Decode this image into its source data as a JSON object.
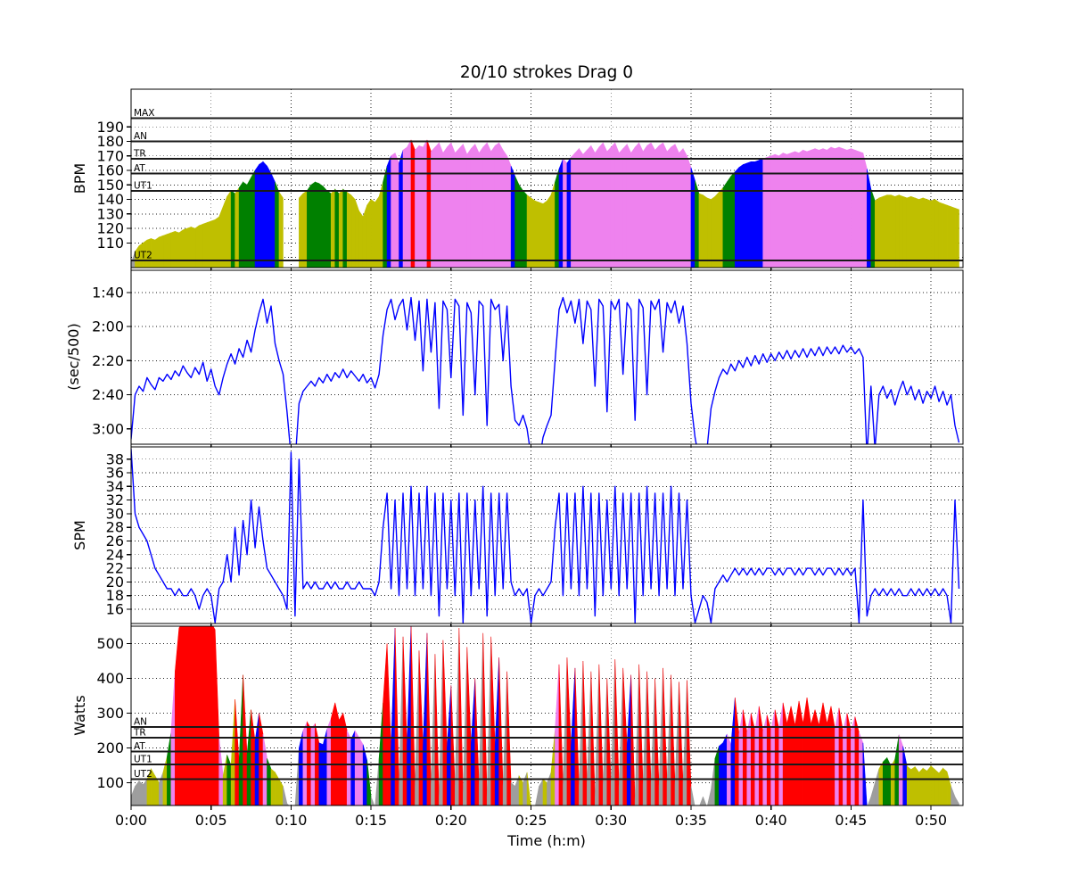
{
  "title": "20/10 strokes Drag 0",
  "xaxis": {
    "label": "Time (h:m)",
    "xlim_seconds": [
      0,
      3120
    ],
    "tick_seconds": [
      0,
      300,
      600,
      900,
      1200,
      1500,
      1800,
      2100,
      2400,
      2700,
      3000
    ],
    "tick_labels": [
      "0:00",
      "0:05",
      "0:10",
      "0:15",
      "0:20",
      "0:25",
      "0:30",
      "0:35",
      "0:40",
      "0:45",
      "0:50"
    ]
  },
  "sampling": {
    "t0": 0,
    "dt_seconds": 15
  },
  "zone_colors": [
    "#9e9e9e",
    "#bfbf00",
    "#008000",
    "#0000ff",
    "#ee82ee",
    "#ff0000"
  ],
  "series_color": "#0000ff",
  "chart_data": [
    {
      "id": "heart-rate",
      "type": "area",
      "ylabel": "BPM",
      "ylim": [
        93,
        216
      ],
      "inverted": false,
      "yticks": [
        110,
        120,
        130,
        140,
        150,
        160,
        170,
        180,
        190
      ],
      "ytick_labels": [
        "110",
        "120",
        "130",
        "140",
        "150",
        "160",
        "170",
        "180",
        "190"
      ],
      "grid_extra_y": [
        100
      ],
      "zones": [
        {
          "label": "UT2",
          "value": 98
        },
        {
          "label": "UT1",
          "value": 146
        },
        {
          "label": "AT",
          "value": 158
        },
        {
          "label": "TR",
          "value": 168
        },
        {
          "label": "AN",
          "value": 180
        },
        {
          "label": "MAX",
          "value": 196
        }
      ],
      "values": [
        96,
        104,
        108,
        110,
        112,
        113,
        112,
        114,
        115,
        116,
        117,
        118,
        117,
        119,
        120,
        121,
        120,
        122,
        123,
        124,
        125,
        126,
        128,
        135,
        142,
        146,
        144,
        148,
        152,
        150,
        155,
        160,
        164,
        166,
        163,
        158,
        152,
        145,
        141,
        null,
        null,
        null,
        141,
        144,
        146,
        150,
        152,
        151,
        149,
        146,
        144,
        147,
        144,
        147,
        145,
        143,
        140,
        132,
        128,
        136,
        140,
        138,
        142,
        152,
        163,
        170,
        172,
        165,
        174,
        176,
        181,
        174,
        177,
        176,
        181,
        173,
        176,
        179,
        172,
        176,
        179,
        172,
        175,
        178,
        171,
        175,
        178,
        172,
        176,
        179,
        173,
        177,
        179,
        174,
        170,
        163,
        156,
        150,
        146,
        143,
        141,
        139,
        138,
        137,
        139,
        143,
        152,
        161,
        168,
        165,
        169,
        172,
        175,
        171,
        174,
        177,
        172,
        176,
        179,
        173,
        176,
        179,
        172,
        175,
        178,
        172,
        176,
        179,
        173,
        177,
        179,
        174,
        177,
        179,
        173,
        176,
        178,
        172,
        175,
        170,
        162,
        153,
        144,
        143,
        141,
        140,
        142,
        145,
        148,
        152,
        156,
        159,
        162,
        164,
        165,
        166,
        166,
        167,
        168,
        169,
        170,
        171,
        170,
        172,
        171,
        172,
        173,
        172,
        174,
        173,
        174,
        175,
        174,
        175,
        174,
        176,
        175,
        176,
        175,
        174,
        175,
        174,
        173,
        172,
        161,
        147,
        139,
        141,
        142,
        143,
        143,
        142,
        143,
        142,
        141,
        142,
        141,
        140,
        141,
        140,
        139,
        140,
        138,
        137,
        136,
        135,
        134,
        133
      ]
    },
    {
      "id": "pace",
      "type": "line",
      "ylabel": "(sec/500)",
      "ylim": [
        87,
        189
      ],
      "inverted": true,
      "yticks": [
        100,
        120,
        140,
        160,
        180
      ],
      "ytick_labels": [
        "1:40",
        "2:00",
        "2:20",
        "2:40",
        "3:00"
      ],
      "grid_extra_y": [],
      "zones": [],
      "values": [
        186,
        160,
        155,
        158,
        150,
        154,
        157,
        150,
        152,
        148,
        151,
        146,
        149,
        143,
        147,
        150,
        144,
        148,
        141,
        152,
        145,
        155,
        160,
        150,
        142,
        136,
        142,
        133,
        138,
        128,
        135,
        122,
        112,
        104,
        118,
        108,
        130,
        140,
        148,
        170,
        196,
        200,
        165,
        158,
        155,
        152,
        155,
        150,
        153,
        148,
        152,
        147,
        150,
        145,
        150,
        146,
        149,
        152,
        148,
        153,
        150,
        156,
        148,
        125,
        110,
        104,
        116,
        108,
        104,
        122,
        103,
        128,
        105,
        146,
        104,
        135,
        106,
        168,
        105,
        110,
        150,
        104,
        108,
        172,
        106,
        112,
        160,
        105,
        108,
        178,
        104,
        110,
        107,
        140,
        108,
        155,
        175,
        178,
        172,
        180,
        196,
        200,
        200,
        185,
        178,
        172,
        140,
        110,
        103,
        112,
        105,
        118,
        104,
        130,
        105,
        110,
        155,
        104,
        108,
        170,
        105,
        110,
        104,
        148,
        106,
        110,
        175,
        104,
        109,
        160,
        105,
        110,
        104,
        135,
        106,
        112,
        105,
        118,
        108,
        130,
        165,
        185,
        198,
        200,
        192,
        168,
        158,
        150,
        145,
        148,
        142,
        146,
        140,
        144,
        138,
        143,
        137,
        142,
        136,
        141,
        136,
        140,
        135,
        139,
        134,
        139,
        134,
        138,
        133,
        138,
        133,
        137,
        132,
        137,
        132,
        136,
        132,
        136,
        131,
        135,
        132,
        136,
        133,
        138,
        196,
        155,
        192,
        160,
        155,
        162,
        157,
        166,
        158,
        152,
        160,
        155,
        163,
        157,
        165,
        158,
        162,
        155,
        164,
        158,
        166,
        160,
        178,
        188
      ]
    },
    {
      "id": "stroke-rate",
      "type": "line",
      "ylabel": "SPM",
      "ylim": [
        13.9,
        39.8
      ],
      "inverted": false,
      "yticks": [
        16,
        18,
        20,
        22,
        24,
        26,
        28,
        30,
        32,
        34,
        36,
        38
      ],
      "ytick_labels": [
        "16",
        "18",
        "20",
        "22",
        "24",
        "26",
        "28",
        "30",
        "32",
        "34",
        "36",
        "38"
      ],
      "grid_extra_y": [],
      "zones": [],
      "values": [
        39.5,
        30,
        28,
        27,
        26,
        24,
        22,
        21,
        20,
        19,
        19,
        18,
        19,
        18,
        18,
        19,
        18,
        16,
        18,
        19,
        18,
        14,
        19,
        20,
        24,
        20,
        28,
        21,
        29,
        24,
        32,
        25,
        31,
        26,
        22,
        21,
        20,
        19,
        18,
        16,
        39,
        15,
        38,
        19,
        20,
        19,
        20,
        19,
        19,
        20,
        19,
        20,
        19,
        19,
        20,
        19,
        19,
        20,
        19,
        19,
        19,
        18,
        20,
        28,
        33,
        19,
        32,
        18,
        33,
        19,
        34,
        18,
        33,
        19,
        34,
        18,
        33,
        15,
        33,
        19,
        32,
        18,
        33,
        14,
        33,
        18,
        32,
        19,
        34,
        15,
        33,
        18,
        33,
        19,
        33,
        20,
        18,
        19,
        18,
        19,
        14,
        18,
        19,
        18,
        19,
        20,
        28,
        33,
        18,
        33,
        19,
        33,
        18,
        34,
        19,
        33,
        15,
        33,
        18,
        32,
        19,
        34,
        18,
        33,
        19,
        33,
        14,
        33,
        18,
        34,
        19,
        33,
        18,
        33,
        19,
        34,
        18,
        33,
        19,
        32,
        18,
        14,
        16,
        18,
        17,
        14,
        19,
        20,
        21,
        20,
        21,
        22,
        21,
        22,
        21,
        22,
        21,
        22,
        21,
        22,
        22,
        21,
        22,
        21,
        22,
        22,
        21,
        22,
        21,
        22,
        22,
        21,
        22,
        21,
        22,
        22,
        21,
        22,
        21,
        22,
        21,
        22,
        14,
        32,
        15,
        18,
        19,
        18,
        19,
        18,
        19,
        18,
        19,
        18,
        18,
        19,
        18,
        19,
        18,
        19,
        18,
        19,
        18,
        19,
        18,
        14,
        32,
        19
      ]
    },
    {
      "id": "watts",
      "type": "area",
      "ylabel": "Watts",
      "ylim": [
        35,
        550
      ],
      "inverted": false,
      "yticks": [
        100,
        200,
        300,
        400,
        500
      ],
      "ytick_labels": [
        "100",
        "200",
        "300",
        "400",
        "500"
      ],
      "grid_extra_y": [],
      "zones": [
        {
          "label": "UT2",
          "value": 110
        },
        {
          "label": "UT1",
          "value": 153
        },
        {
          "label": "AT",
          "value": 190
        },
        {
          "label": "TR",
          "value": 230
        },
        {
          "label": "AN",
          "value": 260
        }
      ],
      "values": [
        60,
        90,
        105,
        95,
        110,
        140,
        120,
        100,
        130,
        175,
        245,
        420,
        545,
        560,
        560,
        560,
        560,
        560,
        560,
        560,
        560,
        540,
        230,
        120,
        180,
        150,
        340,
        160,
        410,
        180,
        310,
        220,
        300,
        240,
        170,
        140,
        130,
        110,
        90,
        40,
        30,
        30,
        200,
        250,
        275,
        255,
        270,
        215,
        210,
        255,
        285,
        330,
        280,
        300,
        250,
        225,
        250,
        230,
        210,
        165,
        60,
        30,
        170,
        330,
        500,
        200,
        545,
        95,
        520,
        210,
        555,
        90,
        480,
        205,
        530,
        95,
        470,
        60,
        510,
        200,
        380,
        90,
        545,
        70,
        490,
        210,
        400,
        95,
        530,
        60,
        520,
        205,
        460,
        90,
        420,
        100,
        90,
        120,
        100,
        130,
        30,
        30,
        90,
        110,
        100,
        130,
        250,
        440,
        95,
        460,
        205,
        430,
        90,
        450,
        100,
        420,
        60,
        440,
        95,
        400,
        100,
        455,
        90,
        430,
        205,
        410,
        50,
        440,
        95,
        420,
        100,
        400,
        90,
        430,
        100,
        410,
        95,
        390,
        100,
        395,
        90,
        30,
        30,
        60,
        30,
        80,
        170,
        205,
        215,
        240,
        210,
        345,
        240,
        310,
        245,
        300,
        250,
        320,
        248,
        295,
        252,
        310,
        255,
        330,
        270,
        320,
        265,
        335,
        270,
        345,
        268,
        310,
        265,
        330,
        270,
        320,
        255,
        315,
        248,
        300,
        250,
        290,
        245,
        215,
        30,
        60,
        100,
        140,
        160,
        172,
        148,
        168,
        238,
        205,
        148,
        138,
        146,
        130,
        142,
        134,
        148,
        138,
        128,
        142,
        132,
        90,
        60,
        40
      ]
    }
  ]
}
